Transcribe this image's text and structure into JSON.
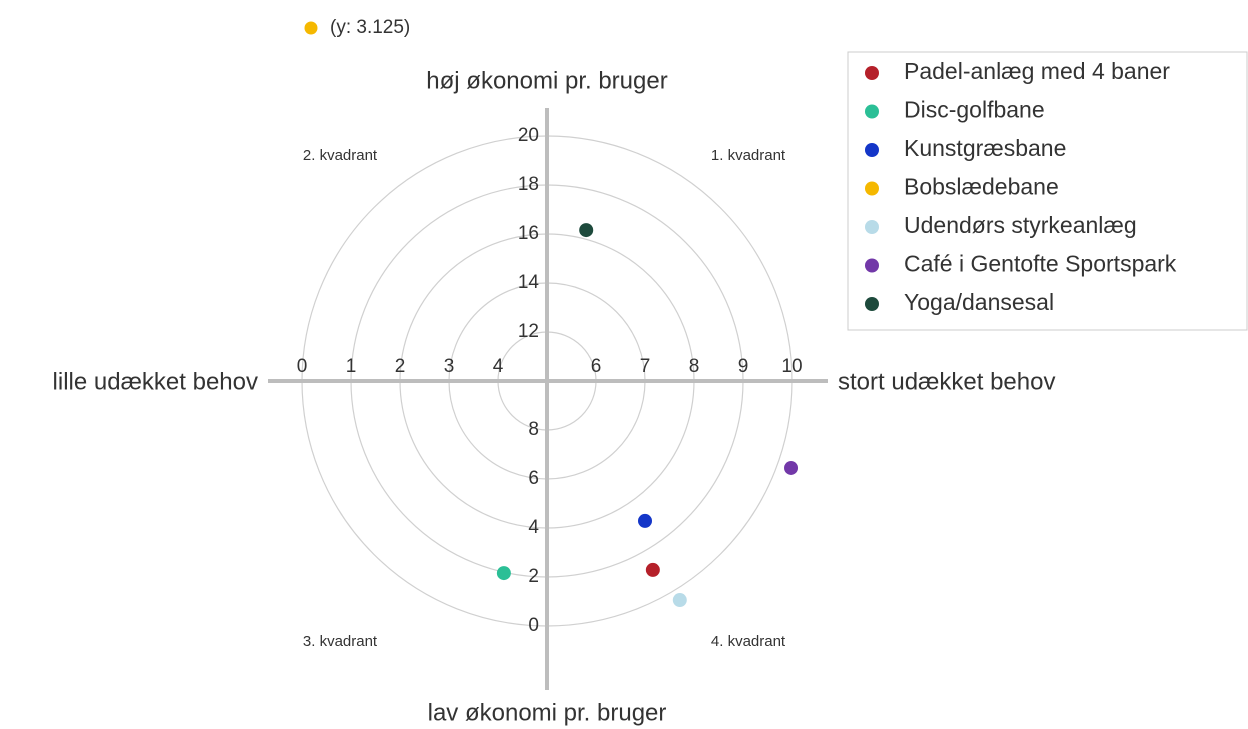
{
  "chart_data": {
    "type": "scatter",
    "y_label_top": "høj økonomi pr. bruger",
    "y_label_bottom": "lav økonomi pr. bruger",
    "x_label_left": "lille udækket behov",
    "x_label_right": "stort udækket behov",
    "quadrants": [
      "1. kvadrant",
      "2. kvadrant",
      "3. kvadrant",
      "4. kvadrant"
    ],
    "annotation": "(y: 3.125)",
    "xlim": [
      0,
      10
    ],
    "ylim": [
      0,
      20
    ],
    "xticks": [
      0,
      1,
      2,
      3,
      4,
      6,
      7,
      8,
      9,
      10
    ],
    "yticks": [
      0,
      2,
      4,
      6,
      8,
      12,
      14,
      16,
      18,
      20
    ],
    "legend": "upper right",
    "series": [
      {
        "name": "Padel-anlæg med 4 baner",
        "color": "#b5202a",
        "x": [
          7.16
        ],
        "values": [
          2.29
        ]
      },
      {
        "name": "Disc-golfbane",
        "color": "#2bbf96",
        "x": [
          4.12
        ],
        "values": [
          2.16
        ]
      },
      {
        "name": "Kunstgræsbane",
        "color": "#1436c8",
        "x": [
          7.0
        ],
        "values": [
          4.29
        ]
      },
      {
        "name": "Bobslædebane",
        "color": "#f5b800",
        "x": [
          null
        ],
        "values": [
          3.125
        ]
      },
      {
        "name": "Udendørs styrkeanlæg",
        "color": "#b8dbe8",
        "x": [
          7.71
        ],
        "values": [
          1.06
        ]
      },
      {
        "name": "Café i Gentofte Sportspark",
        "color": "#7238a8",
        "x": [
          9.98
        ],
        "values": [
          6.45
        ]
      },
      {
        "name": "Yoga/dansesal",
        "color": "#1d4a3c",
        "x": [
          5.8
        ],
        "values": [
          16.16
        ]
      }
    ]
  }
}
